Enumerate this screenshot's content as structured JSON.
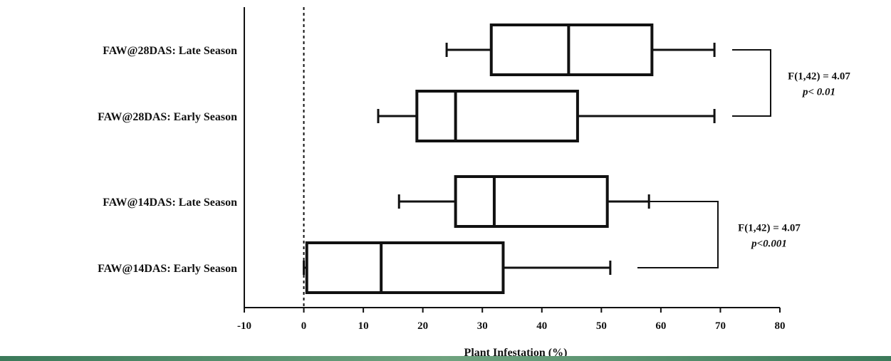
{
  "chart_data": {
    "type": "boxplot",
    "orientation": "horizontal",
    "xlabel": "Plant Infestation (%)",
    "xlim": [
      -10,
      80
    ],
    "xticks": [
      -10,
      0,
      10,
      20,
      30,
      40,
      50,
      60,
      70,
      80
    ],
    "reference_line": {
      "x": 0,
      "style": "dashed"
    },
    "categories": [
      "FAW@28DAS: Late Season",
      "FAW@28DAS: Early Season",
      "FAW@14DAS: Late Season",
      "FAW@14DAS: Early Season"
    ],
    "boxes": [
      {
        "name": "FAW@28DAS: Late Season",
        "min": 24,
        "q1": 31.5,
        "median": 44.5,
        "q3": 58.5,
        "max": 69
      },
      {
        "name": "FAW@28DAS: Early Season",
        "min": 12.5,
        "q1": 19,
        "median": 25.5,
        "q3": 46,
        "max": 69
      },
      {
        "name": "FAW@14DAS: Late Season",
        "min": 16,
        "q1": 25.5,
        "median": 32,
        "q3": 51,
        "max": 58
      },
      {
        "name": "FAW@14DAS: Early Season",
        "min": 0,
        "q1": 0.5,
        "median": 13,
        "q3": 33.5,
        "max": 51.5
      }
    ],
    "annotations": [
      {
        "pair": [
          0,
          1
        ],
        "line1": "F(1,42) = 4.07",
        "line2": "p< 0.01"
      },
      {
        "pair": [
          2,
          3
        ],
        "line1": "F(1,42) = 4.07",
        "line2": "p<0.001"
      }
    ]
  }
}
